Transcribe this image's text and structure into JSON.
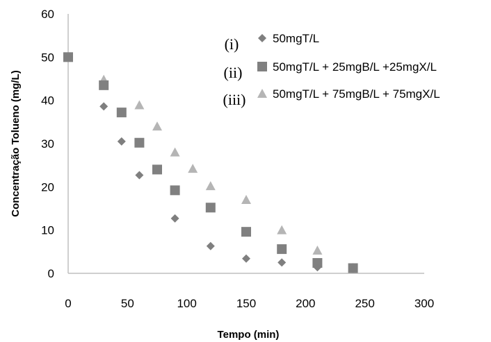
{
  "chart_data": {
    "type": "scatter",
    "title": "",
    "xlabel": "Tempo (min)",
    "ylabel": "Concentração Tolueno  (mg/L)",
    "xlim": [
      0,
      300
    ],
    "ylim": [
      0,
      60
    ],
    "xticks": [
      0,
      50,
      100,
      150,
      200,
      250,
      300
    ],
    "yticks": [
      0,
      10,
      20,
      30,
      40,
      50,
      60
    ],
    "grid": false,
    "legend_position": "top-right",
    "series": [
      {
        "name": "50mgT/L",
        "marker": "diamond",
        "color": "#7f7f7f",
        "tag": "(i)",
        "x": [
          0,
          30,
          45,
          60,
          90,
          120,
          150,
          180,
          210,
          240
        ],
        "y": [
          50,
          38.6,
          30.5,
          22.7,
          12.7,
          6.3,
          3.4,
          2.5,
          1.4,
          1.0
        ]
      },
      {
        "name": "50mgT/L + 25mgB/L +25mgX/L",
        "marker": "square",
        "color": "#808080",
        "tag": "(ii)",
        "x": [
          0,
          30,
          45,
          60,
          75,
          90,
          120,
          150,
          180,
          210,
          240
        ],
        "y": [
          50,
          43.5,
          37.2,
          30.2,
          24.0,
          19.2,
          15.2,
          9.6,
          5.6,
          2.4,
          1.2
        ]
      },
      {
        "name": "50mgT/L + 75mgB/L + 75mgX/L",
        "marker": "triangle",
        "color": "#b5b5b5",
        "tag": "(iii)",
        "x": [
          0,
          30,
          60,
          75,
          90,
          105,
          120,
          150,
          180,
          210,
          240
        ],
        "y": [
          50,
          44.8,
          38.9,
          34.0,
          28.0,
          24.2,
          20.2,
          17.0,
          10.0,
          5.3,
          1.3
        ]
      }
    ]
  }
}
